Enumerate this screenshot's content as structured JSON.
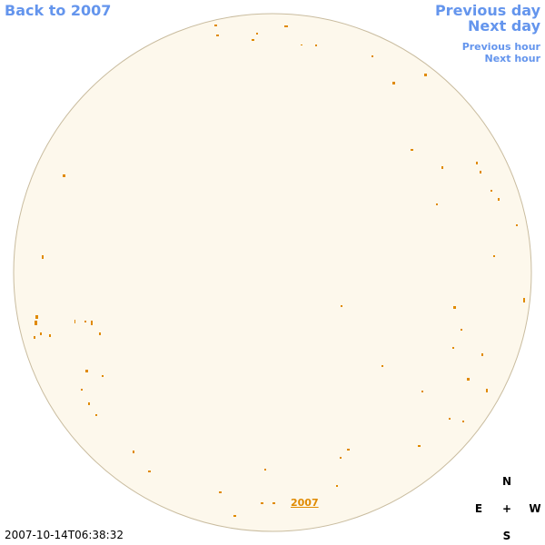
{
  "navigation": {
    "back": "Back to 2007",
    "previous_day": "Previous day",
    "next_day": "Next day",
    "previous_hour": "Previous hour",
    "next_hour": "Next hour"
  },
  "timestamp": "2007-10-14T06:38:32",
  "compass": {
    "north": "N",
    "east": "E",
    "center": "+",
    "west": "W",
    "south": "S"
  },
  "year_label": "2007"
}
